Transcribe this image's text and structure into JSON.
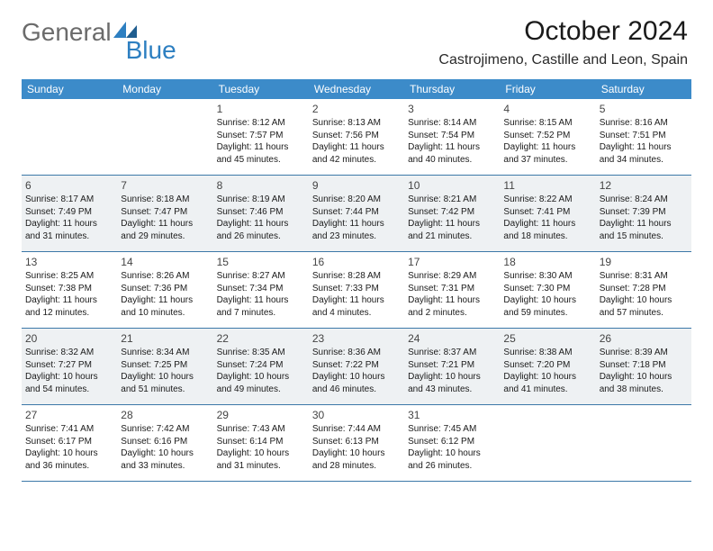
{
  "brand": {
    "word1": "General",
    "word2": "Blue",
    "word1_color": "#6b6b6b",
    "word2_color": "#2d7fc1",
    "triangle_color": "#2d7fc1"
  },
  "header": {
    "title": "October 2024",
    "location": "Castrojimeno, Castille and Leon, Spain",
    "title_fontsize": 30,
    "location_fontsize": 16
  },
  "calendar": {
    "header_bg": "#3c8bc9",
    "header_fg": "#ffffff",
    "row_border_color": "#3c78a8",
    "shade_bg": "#eef1f3",
    "day_names": [
      "Sunday",
      "Monday",
      "Tuesday",
      "Wednesday",
      "Thursday",
      "Friday",
      "Saturday"
    ],
    "weeks": [
      {
        "shaded": false,
        "days": [
          {
            "num": "",
            "sunrise": "",
            "sunset": "",
            "daylight": ""
          },
          {
            "num": "",
            "sunrise": "",
            "sunset": "",
            "daylight": ""
          },
          {
            "num": "1",
            "sunrise": "Sunrise: 8:12 AM",
            "sunset": "Sunset: 7:57 PM",
            "daylight": "Daylight: 11 hours and 45 minutes."
          },
          {
            "num": "2",
            "sunrise": "Sunrise: 8:13 AM",
            "sunset": "Sunset: 7:56 PM",
            "daylight": "Daylight: 11 hours and 42 minutes."
          },
          {
            "num": "3",
            "sunrise": "Sunrise: 8:14 AM",
            "sunset": "Sunset: 7:54 PM",
            "daylight": "Daylight: 11 hours and 40 minutes."
          },
          {
            "num": "4",
            "sunrise": "Sunrise: 8:15 AM",
            "sunset": "Sunset: 7:52 PM",
            "daylight": "Daylight: 11 hours and 37 minutes."
          },
          {
            "num": "5",
            "sunrise": "Sunrise: 8:16 AM",
            "sunset": "Sunset: 7:51 PM",
            "daylight": "Daylight: 11 hours and 34 minutes."
          }
        ]
      },
      {
        "shaded": true,
        "days": [
          {
            "num": "6",
            "sunrise": "Sunrise: 8:17 AM",
            "sunset": "Sunset: 7:49 PM",
            "daylight": "Daylight: 11 hours and 31 minutes."
          },
          {
            "num": "7",
            "sunrise": "Sunrise: 8:18 AM",
            "sunset": "Sunset: 7:47 PM",
            "daylight": "Daylight: 11 hours and 29 minutes."
          },
          {
            "num": "8",
            "sunrise": "Sunrise: 8:19 AM",
            "sunset": "Sunset: 7:46 PM",
            "daylight": "Daylight: 11 hours and 26 minutes."
          },
          {
            "num": "9",
            "sunrise": "Sunrise: 8:20 AM",
            "sunset": "Sunset: 7:44 PM",
            "daylight": "Daylight: 11 hours and 23 minutes."
          },
          {
            "num": "10",
            "sunrise": "Sunrise: 8:21 AM",
            "sunset": "Sunset: 7:42 PM",
            "daylight": "Daylight: 11 hours and 21 minutes."
          },
          {
            "num": "11",
            "sunrise": "Sunrise: 8:22 AM",
            "sunset": "Sunset: 7:41 PM",
            "daylight": "Daylight: 11 hours and 18 minutes."
          },
          {
            "num": "12",
            "sunrise": "Sunrise: 8:24 AM",
            "sunset": "Sunset: 7:39 PM",
            "daylight": "Daylight: 11 hours and 15 minutes."
          }
        ]
      },
      {
        "shaded": false,
        "days": [
          {
            "num": "13",
            "sunrise": "Sunrise: 8:25 AM",
            "sunset": "Sunset: 7:38 PM",
            "daylight": "Daylight: 11 hours and 12 minutes."
          },
          {
            "num": "14",
            "sunrise": "Sunrise: 8:26 AM",
            "sunset": "Sunset: 7:36 PM",
            "daylight": "Daylight: 11 hours and 10 minutes."
          },
          {
            "num": "15",
            "sunrise": "Sunrise: 8:27 AM",
            "sunset": "Sunset: 7:34 PM",
            "daylight": "Daylight: 11 hours and 7 minutes."
          },
          {
            "num": "16",
            "sunrise": "Sunrise: 8:28 AM",
            "sunset": "Sunset: 7:33 PM",
            "daylight": "Daylight: 11 hours and 4 minutes."
          },
          {
            "num": "17",
            "sunrise": "Sunrise: 8:29 AM",
            "sunset": "Sunset: 7:31 PM",
            "daylight": "Daylight: 11 hours and 2 minutes."
          },
          {
            "num": "18",
            "sunrise": "Sunrise: 8:30 AM",
            "sunset": "Sunset: 7:30 PM",
            "daylight": "Daylight: 10 hours and 59 minutes."
          },
          {
            "num": "19",
            "sunrise": "Sunrise: 8:31 AM",
            "sunset": "Sunset: 7:28 PM",
            "daylight": "Daylight: 10 hours and 57 minutes."
          }
        ]
      },
      {
        "shaded": true,
        "days": [
          {
            "num": "20",
            "sunrise": "Sunrise: 8:32 AM",
            "sunset": "Sunset: 7:27 PM",
            "daylight": "Daylight: 10 hours and 54 minutes."
          },
          {
            "num": "21",
            "sunrise": "Sunrise: 8:34 AM",
            "sunset": "Sunset: 7:25 PM",
            "daylight": "Daylight: 10 hours and 51 minutes."
          },
          {
            "num": "22",
            "sunrise": "Sunrise: 8:35 AM",
            "sunset": "Sunset: 7:24 PM",
            "daylight": "Daylight: 10 hours and 49 minutes."
          },
          {
            "num": "23",
            "sunrise": "Sunrise: 8:36 AM",
            "sunset": "Sunset: 7:22 PM",
            "daylight": "Daylight: 10 hours and 46 minutes."
          },
          {
            "num": "24",
            "sunrise": "Sunrise: 8:37 AM",
            "sunset": "Sunset: 7:21 PM",
            "daylight": "Daylight: 10 hours and 43 minutes."
          },
          {
            "num": "25",
            "sunrise": "Sunrise: 8:38 AM",
            "sunset": "Sunset: 7:20 PM",
            "daylight": "Daylight: 10 hours and 41 minutes."
          },
          {
            "num": "26",
            "sunrise": "Sunrise: 8:39 AM",
            "sunset": "Sunset: 7:18 PM",
            "daylight": "Daylight: 10 hours and 38 minutes."
          }
        ]
      },
      {
        "shaded": false,
        "days": [
          {
            "num": "27",
            "sunrise": "Sunrise: 7:41 AM",
            "sunset": "Sunset: 6:17 PM",
            "daylight": "Daylight: 10 hours and 36 minutes."
          },
          {
            "num": "28",
            "sunrise": "Sunrise: 7:42 AM",
            "sunset": "Sunset: 6:16 PM",
            "daylight": "Daylight: 10 hours and 33 minutes."
          },
          {
            "num": "29",
            "sunrise": "Sunrise: 7:43 AM",
            "sunset": "Sunset: 6:14 PM",
            "daylight": "Daylight: 10 hours and 31 minutes."
          },
          {
            "num": "30",
            "sunrise": "Sunrise: 7:44 AM",
            "sunset": "Sunset: 6:13 PM",
            "daylight": "Daylight: 10 hours and 28 minutes."
          },
          {
            "num": "31",
            "sunrise": "Sunrise: 7:45 AM",
            "sunset": "Sunset: 6:12 PM",
            "daylight": "Daylight: 10 hours and 26 minutes."
          },
          {
            "num": "",
            "sunrise": "",
            "sunset": "",
            "daylight": ""
          },
          {
            "num": "",
            "sunrise": "",
            "sunset": "",
            "daylight": ""
          }
        ]
      }
    ]
  }
}
